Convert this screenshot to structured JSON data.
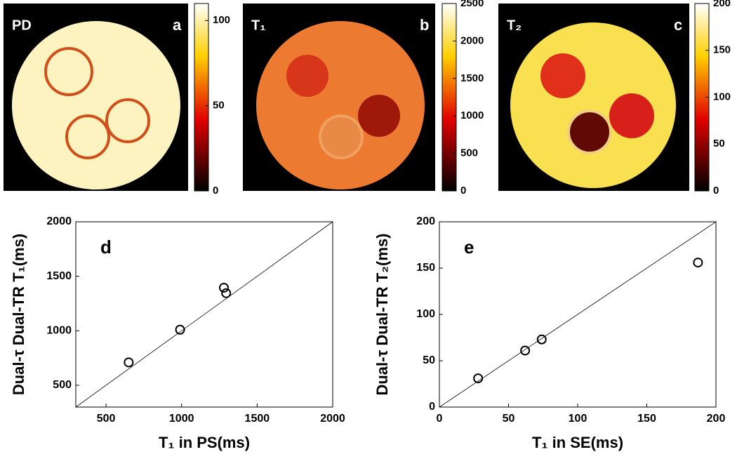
{
  "chart_data": [
    {
      "type": "image",
      "label": "PD",
      "panel": "a",
      "clim": [
        0,
        110
      ],
      "cticks": [
        0,
        50,
        100
      ]
    },
    {
      "type": "image",
      "label": "T₁",
      "panel": "b",
      "clim": [
        0,
        2500
      ],
      "cticks": [
        0,
        500,
        1000,
        1500,
        2000,
        2500
      ]
    },
    {
      "type": "image",
      "label": "T₂",
      "panel": "c",
      "clim": [
        0,
        200
      ],
      "cticks": [
        0,
        50,
        100,
        150,
        200
      ]
    },
    {
      "type": "scatter",
      "panel": "d",
      "xlabel": "T₁ in PS(ms)",
      "ylabel": "Dual-τ Dual-TR T₁(ms)",
      "color": "#000000",
      "x": [
        650,
        990,
        1280,
        1295
      ],
      "values": [
        710,
        1010,
        1395,
        1345
      ],
      "xlim": [
        300,
        2000
      ],
      "ylim": [
        300,
        2000
      ],
      "xticks": [
        500,
        1000,
        1500,
        2000
      ],
      "yticks": [
        500,
        1000,
        1500,
        2000
      ]
    },
    {
      "type": "scatter",
      "panel": "e",
      "xlabel": "T₁ in SE(ms)",
      "ylabel": "Dual-τ Dual-TR T₂(ms)",
      "color": "#000000",
      "x": [
        28,
        62,
        74,
        187
      ],
      "values": [
        31,
        61,
        73,
        156
      ],
      "xlim": [
        0,
        200
      ],
      "ylim": [
        0,
        200
      ],
      "xticks": [
        0,
        50,
        100,
        150,
        200
      ],
      "yticks": [
        0,
        50,
        100,
        150,
        200
      ]
    }
  ]
}
